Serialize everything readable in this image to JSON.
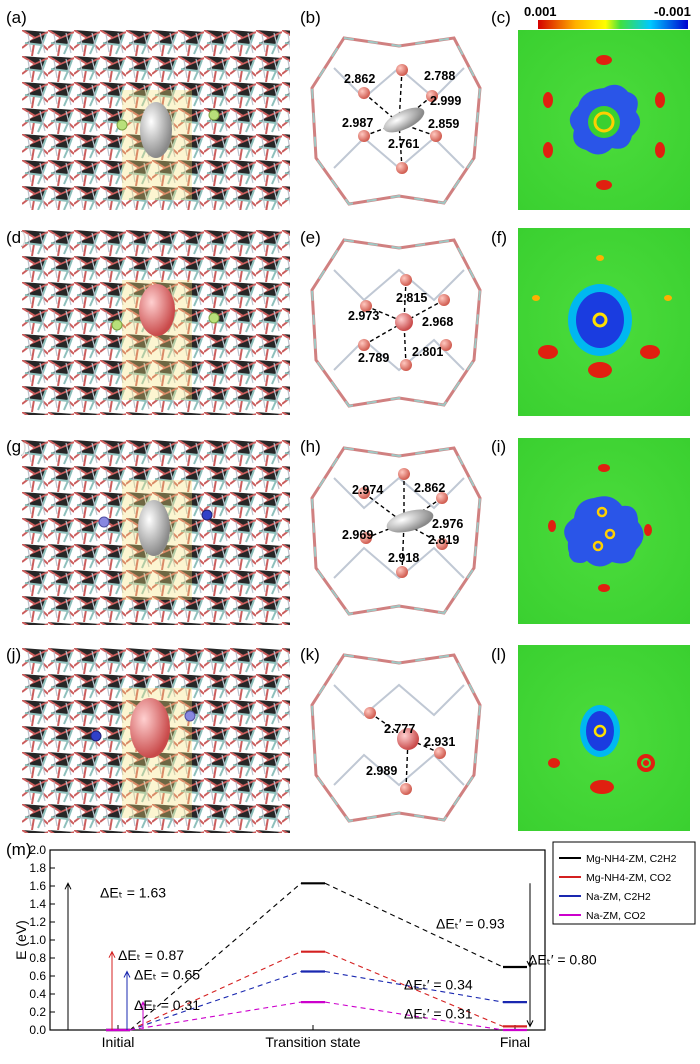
{
  "panels": {
    "a": "(a)",
    "b": "(b)",
    "c": "(c)",
    "d": "(d)",
    "e": "(e)",
    "f": "(f)",
    "g": "(g)",
    "h": "(h)",
    "i": "(i)",
    "j": "(j)",
    "k": "(k)",
    "l": "(l)",
    "m": "(m)"
  },
  "colorbar": {
    "left_label": "0.001",
    "right_label": "-0.001"
  },
  "distances": {
    "b": [
      "2.862",
      "2.788",
      "2.999",
      "2.987",
      "2.859",
      "2.761"
    ],
    "e": [
      "2.815",
      "2.973",
      "2.968",
      "2.789",
      "2.801"
    ],
    "h": [
      "2.974",
      "2.862",
      "2.969",
      "2.976",
      "2.819",
      "2.918"
    ],
    "k": [
      "2.777",
      "2.931",
      "2.989"
    ]
  },
  "cation_colors": {
    "mg": "#b8e07a",
    "na": "#4a4fd0"
  },
  "chart_data": {
    "type": "line",
    "title": "",
    "ylabel": "E (eV)",
    "xlabel": "",
    "categories": [
      "Initial",
      "Transition state",
      "Final"
    ],
    "ylim": [
      0,
      2.0
    ],
    "yticks": [
      "0.0",
      "0.2",
      "0.4",
      "0.6",
      "0.8",
      "1.0",
      "1.2",
      "1.4",
      "1.6",
      "1.8",
      "2.0"
    ],
    "legend_position": "top-right",
    "series": [
      {
        "name": "Mg-NH4-ZM, C2H2",
        "color": "#000000",
        "values": [
          0.0,
          1.63,
          0.7
        ]
      },
      {
        "name": "Mg-NH4-ZM, CO2",
        "color": "#d42020",
        "values": [
          0.0,
          0.87,
          0.04
        ]
      },
      {
        "name": "Na-ZM, C2H2",
        "color": "#1a28b0",
        "values": [
          0.0,
          0.65,
          0.31
        ]
      },
      {
        "name": "Na-ZM, CO2",
        "color": "#cc00cc",
        "values": [
          0.0,
          0.31,
          0.0
        ]
      }
    ],
    "annotations": [
      "ΔEₜ = 1.63",
      "ΔEₜ = 0.87",
      "ΔEₜ = 0.65",
      "ΔEₜ = 0.31",
      "ΔEₜ′ = 0.93",
      "ΔEₜ′ = 0.80",
      "ΔEₜ′ = 0.34",
      "ΔEₜ′ = 0.31"
    ]
  }
}
